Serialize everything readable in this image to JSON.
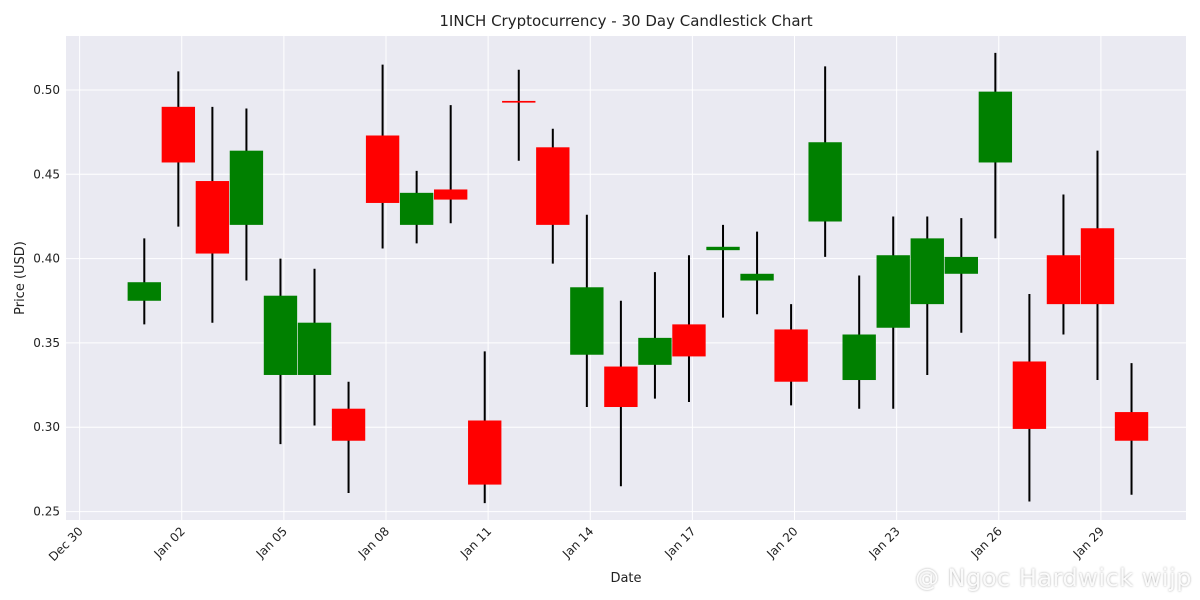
{
  "chart_data": {
    "type": "candlestick",
    "title": "1INCH Cryptocurrency - 30 Day Candlestick Chart",
    "xlabel": "Date",
    "ylabel": "Price (USD)",
    "grid": true,
    "colors": {
      "up": "#008000",
      "down": "#ff0000",
      "wick": "#000000",
      "background": "#eaeaf2",
      "grid": "#ffffff"
    },
    "ylim": [
      0.245,
      0.532
    ],
    "yticks": [
      0.25,
      0.3,
      0.35,
      0.4,
      0.45,
      0.5
    ],
    "ytick_labels": [
      "0.25",
      "0.30",
      "0.35",
      "0.40",
      "0.45",
      "0.50"
    ],
    "xlim_days": [
      -0.4,
      32.5
    ],
    "xticks": [
      {
        "day": 0,
        "label": "Dec 30"
      },
      {
        "day": 3,
        "label": "Jan 02"
      },
      {
        "day": 6,
        "label": "Jan 05"
      },
      {
        "day": 9,
        "label": "Jan 08"
      },
      {
        "day": 12,
        "label": "Jan 11"
      },
      {
        "day": 15,
        "label": "Jan 14"
      },
      {
        "day": 18,
        "label": "Jan 17"
      },
      {
        "day": 21,
        "label": "Jan 20"
      },
      {
        "day": 24,
        "label": "Jan 23"
      },
      {
        "day": 27,
        "label": "Jan 26"
      },
      {
        "day": 30,
        "label": "Jan 29"
      }
    ],
    "candles": [
      {
        "day": 1.9,
        "open": 0.375,
        "high": 0.412,
        "low": 0.361,
        "close": 0.386
      },
      {
        "day": 2.9,
        "open": 0.49,
        "high": 0.511,
        "low": 0.419,
        "close": 0.457
      },
      {
        "day": 3.9,
        "open": 0.446,
        "high": 0.49,
        "low": 0.362,
        "close": 0.403
      },
      {
        "day": 4.9,
        "open": 0.42,
        "high": 0.489,
        "low": 0.387,
        "close": 0.464
      },
      {
        "day": 5.9,
        "open": 0.331,
        "high": 0.4,
        "low": 0.29,
        "close": 0.378
      },
      {
        "day": 6.9,
        "open": 0.331,
        "high": 0.394,
        "low": 0.301,
        "close": 0.362
      },
      {
        "day": 7.9,
        "open": 0.311,
        "high": 0.327,
        "low": 0.261,
        "close": 0.292
      },
      {
        "day": 8.9,
        "open": 0.473,
        "high": 0.515,
        "low": 0.406,
        "close": 0.433
      },
      {
        "day": 9.9,
        "open": 0.42,
        "high": 0.452,
        "low": 0.409,
        "close": 0.439
      },
      {
        "day": 10.9,
        "open": 0.441,
        "high": 0.491,
        "low": 0.421,
        "close": 0.435
      },
      {
        "day": 11.9,
        "open": 0.304,
        "high": 0.345,
        "low": 0.255,
        "close": 0.266
      },
      {
        "day": 12.9,
        "open": 0.4935,
        "high": 0.512,
        "low": 0.458,
        "close": 0.4925
      },
      {
        "day": 13.9,
        "open": 0.466,
        "high": 0.477,
        "low": 0.397,
        "close": 0.42
      },
      {
        "day": 14.9,
        "open": 0.343,
        "high": 0.426,
        "low": 0.312,
        "close": 0.383
      },
      {
        "day": 15.9,
        "open": 0.336,
        "high": 0.375,
        "low": 0.265,
        "close": 0.312
      },
      {
        "day": 16.9,
        "open": 0.337,
        "high": 0.392,
        "low": 0.317,
        "close": 0.353
      },
      {
        "day": 17.9,
        "open": 0.361,
        "high": 0.402,
        "low": 0.315,
        "close": 0.342
      },
      {
        "day": 18.9,
        "open": 0.405,
        "high": 0.42,
        "low": 0.365,
        "close": 0.407
      },
      {
        "day": 19.9,
        "open": 0.387,
        "high": 0.416,
        "low": 0.367,
        "close": 0.391
      },
      {
        "day": 20.9,
        "open": 0.358,
        "high": 0.373,
        "low": 0.313,
        "close": 0.327
      },
      {
        "day": 21.9,
        "open": 0.422,
        "high": 0.514,
        "low": 0.401,
        "close": 0.469
      },
      {
        "day": 22.9,
        "open": 0.328,
        "high": 0.39,
        "low": 0.311,
        "close": 0.355
      },
      {
        "day": 23.9,
        "open": 0.359,
        "high": 0.425,
        "low": 0.311,
        "close": 0.402
      },
      {
        "day": 24.9,
        "open": 0.373,
        "high": 0.425,
        "low": 0.331,
        "close": 0.412
      },
      {
        "day": 25.9,
        "open": 0.391,
        "high": 0.424,
        "low": 0.356,
        "close": 0.401
      },
      {
        "day": 26.9,
        "open": 0.457,
        "high": 0.522,
        "low": 0.412,
        "close": 0.499
      },
      {
        "day": 27.9,
        "open": 0.339,
        "high": 0.379,
        "low": 0.256,
        "close": 0.299
      },
      {
        "day": 28.9,
        "open": 0.402,
        "high": 0.438,
        "low": 0.355,
        "close": 0.373
      },
      {
        "day": 29.9,
        "open": 0.418,
        "high": 0.464,
        "low": 0.328,
        "close": 0.373
      },
      {
        "day": 30.9,
        "open": 0.309,
        "high": 0.338,
        "low": 0.26,
        "close": 0.292
      }
    ]
  },
  "watermark": {
    "text": "@ Ngoc Hardwick wijp",
    "icon": "diamond-logo-icon"
  }
}
